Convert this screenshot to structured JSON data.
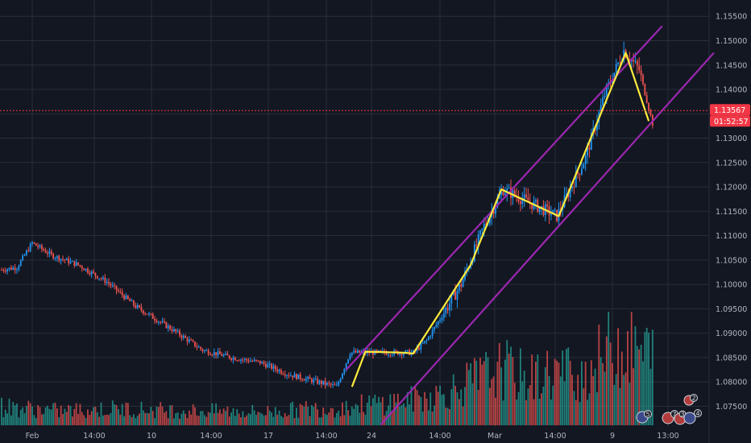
{
  "chart_data": {
    "type": "candlestick",
    "instrument_axis": "price",
    "ylim": [
      1.0712,
      1.1614
    ],
    "y_ticks": [
      "1.15500",
      "1.15000",
      "1.14500",
      "1.14000",
      "1.13500",
      "1.13000",
      "1.12500",
      "1.12000",
      "1.11500",
      "1.11000",
      "1.10500",
      "1.10000",
      "1.09500",
      "1.09000",
      "1.08500",
      "1.08000",
      "1.07500"
    ],
    "x_ticks": [
      "Feb",
      "14:00",
      "10",
      "14:00",
      "17",
      "14:00",
      "24",
      "14:00",
      "Mar",
      "14:00",
      "9",
      "13:00"
    ],
    "bar_count": 220,
    "current_price": "1.13567",
    "countdown": "01:52:57",
    "current_price_value": 1.13567,
    "colors": {
      "background": "#131722",
      "up": "#2196f3",
      "down": "#ef5350",
      "volume_up": "#26a69a",
      "volume_down": "#ef5350",
      "channel": "#9c27b0",
      "zigzag": "#ffeb3b",
      "price_label": "#f23645"
    },
    "anchors": [
      [
        0,
        1.103
      ],
      [
        8,
        1.1035
      ],
      [
        16,
        1.1085
      ],
      [
        26,
        1.106
      ],
      [
        40,
        1.104
      ],
      [
        55,
        1.1005
      ],
      [
        70,
        1.0955
      ],
      [
        90,
        1.0905
      ],
      [
        105,
        1.0865
      ],
      [
        120,
        1.085
      ],
      [
        135,
        1.084
      ],
      [
        150,
        1.0815
      ],
      [
        165,
        1.08
      ],
      [
        175,
        1.079
      ],
      [
        182,
        1.086
      ],
      [
        215,
        1.086
      ],
      [
        222,
        1.0885
      ],
      [
        240,
        1.1
      ],
      [
        252,
        1.112
      ],
      [
        262,
        1.1195
      ],
      [
        290,
        1.114
      ],
      [
        305,
        1.126
      ],
      [
        315,
        1.139
      ],
      [
        325,
        1.148
      ],
      [
        333,
        1.144
      ],
      [
        340,
        1.133
      ]
    ],
    "zigzag": [
      [
        183,
        1.079
      ],
      [
        190,
        1.0862
      ],
      [
        210,
        1.086
      ],
      [
        215,
        1.0858
      ],
      [
        245,
        1.104
      ],
      [
        261,
        1.1195
      ],
      [
        291,
        1.114
      ],
      [
        326,
        1.1475
      ],
      [
        338,
        1.1335
      ]
    ],
    "channel_upper": [
      [
        180,
        1.0825
      ],
      [
        345,
        1.153
      ]
    ],
    "channel_lower": [
      [
        198,
        1.0712
      ],
      [
        372,
        1.1475
      ]
    ],
    "volume_profile": [
      [
        0,
        0.18
      ],
      [
        30,
        0.14
      ],
      [
        60,
        0.16
      ],
      [
        100,
        0.14
      ],
      [
        140,
        0.13
      ],
      [
        160,
        0.16
      ],
      [
        175,
        0.17
      ],
      [
        190,
        0.2
      ],
      [
        215,
        0.25
      ],
      [
        230,
        0.3
      ],
      [
        245,
        0.42
      ],
      [
        262,
        0.55
      ],
      [
        275,
        0.45
      ],
      [
        290,
        0.52
      ],
      [
        305,
        0.5
      ],
      [
        320,
        0.78
      ],
      [
        330,
        0.72
      ],
      [
        340,
        0.68
      ]
    ]
  },
  "events": [
    {
      "label": "5"
    },
    {
      "label": "7"
    },
    {
      "label": "3"
    },
    {
      "label": "1"
    },
    {
      "label": "4"
    },
    {
      "label": "2"
    }
  ]
}
